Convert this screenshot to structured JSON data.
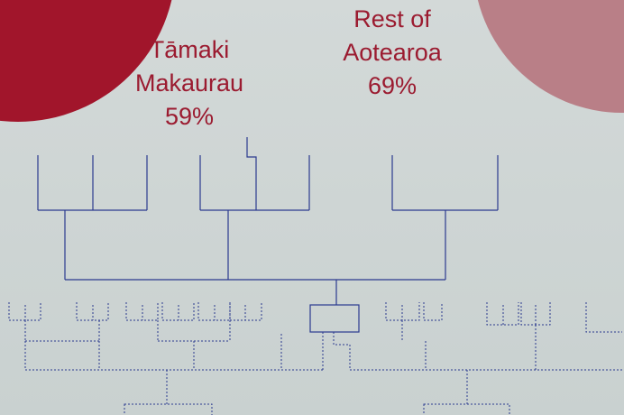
{
  "regions": [
    {
      "name_line1": "Tāmaki",
      "name_line2": "Makaurau",
      "percent": "59%"
    },
    {
      "name_line1": "Rest of",
      "name_line2": "Aotearoa",
      "percent": "69%"
    }
  ]
}
